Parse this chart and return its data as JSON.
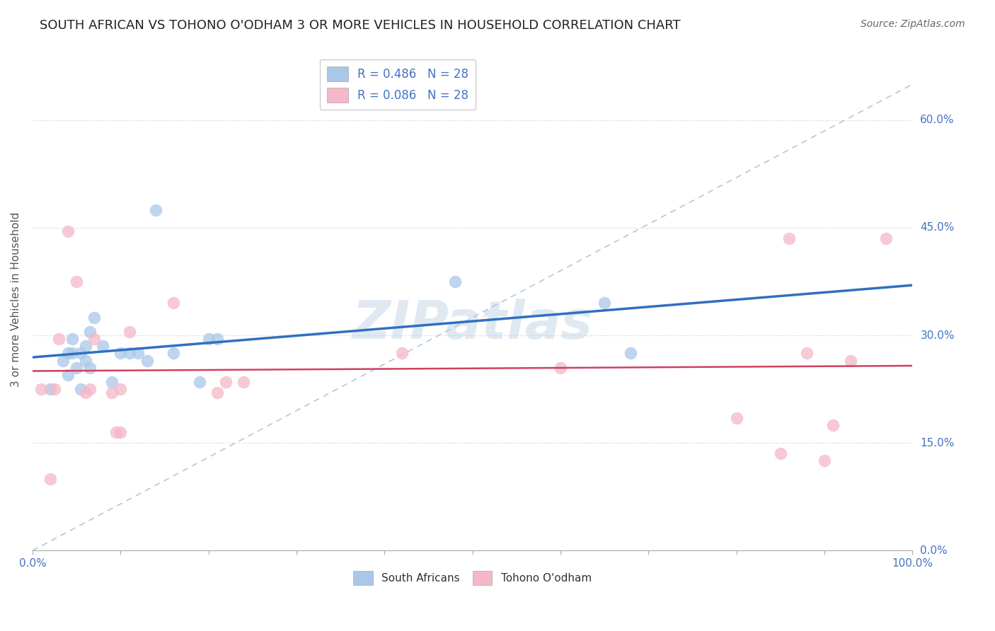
{
  "title": "SOUTH AFRICAN VS TOHONO O'ODHAM 3 OR MORE VEHICLES IN HOUSEHOLD CORRELATION CHART",
  "source": "Source: ZipAtlas.com",
  "ylabel": "3 or more Vehicles in Household",
  "r_blue": 0.486,
  "r_pink": 0.086,
  "n_blue": 28,
  "n_pink": 28,
  "blue_scatter_color": "#a8c8e8",
  "pink_scatter_color": "#f4b8c8",
  "blue_line_color": "#3070c0",
  "pink_line_color": "#d04060",
  "dashed_line_color": "#b0c8e0",
  "legend_label_blue": "South Africans",
  "legend_label_pink": "Tohono O'odham",
  "xlim": [
    0.0,
    1.0
  ],
  "ylim": [
    0.0,
    0.7
  ],
  "ytick_values": [
    0.0,
    0.15,
    0.3,
    0.45,
    0.6
  ],
  "ytick_labels": [
    "0.0%",
    "15.0%",
    "30.0%",
    "45.0%",
    "60.0%"
  ],
  "xtick_labels_shown": {
    "0.0": "0.0%",
    "1.0": "100.0%"
  },
  "blue_x": [
    0.02,
    0.035,
    0.04,
    0.04,
    0.045,
    0.045,
    0.05,
    0.055,
    0.055,
    0.06,
    0.06,
    0.065,
    0.065,
    0.07,
    0.08,
    0.09,
    0.1,
    0.11,
    0.12,
    0.13,
    0.14,
    0.16,
    0.19,
    0.2,
    0.21,
    0.48,
    0.65,
    0.68
  ],
  "blue_y": [
    0.225,
    0.265,
    0.245,
    0.275,
    0.275,
    0.295,
    0.255,
    0.225,
    0.275,
    0.265,
    0.285,
    0.255,
    0.305,
    0.325,
    0.285,
    0.235,
    0.275,
    0.275,
    0.275,
    0.265,
    0.475,
    0.275,
    0.235,
    0.295,
    0.295,
    0.375,
    0.345,
    0.275
  ],
  "pink_x": [
    0.01,
    0.02,
    0.025,
    0.03,
    0.04,
    0.05,
    0.06,
    0.065,
    0.07,
    0.09,
    0.095,
    0.1,
    0.1,
    0.11,
    0.16,
    0.21,
    0.22,
    0.24,
    0.42,
    0.6,
    0.8,
    0.85,
    0.86,
    0.88,
    0.9,
    0.91,
    0.93,
    0.97
  ],
  "pink_y": [
    0.225,
    0.1,
    0.225,
    0.295,
    0.445,
    0.375,
    0.22,
    0.225,
    0.295,
    0.22,
    0.165,
    0.225,
    0.165,
    0.305,
    0.345,
    0.22,
    0.235,
    0.235,
    0.275,
    0.255,
    0.185,
    0.135,
    0.435,
    0.275,
    0.125,
    0.175,
    0.265,
    0.435
  ],
  "watermark": "ZIPatlas",
  "title_color": "#222222",
  "tick_color": "#4472c4",
  "ylabel_color": "#555555",
  "title_fontsize": 13,
  "axis_label_fontsize": 11,
  "tick_fontsize": 11,
  "source_fontsize": 10
}
